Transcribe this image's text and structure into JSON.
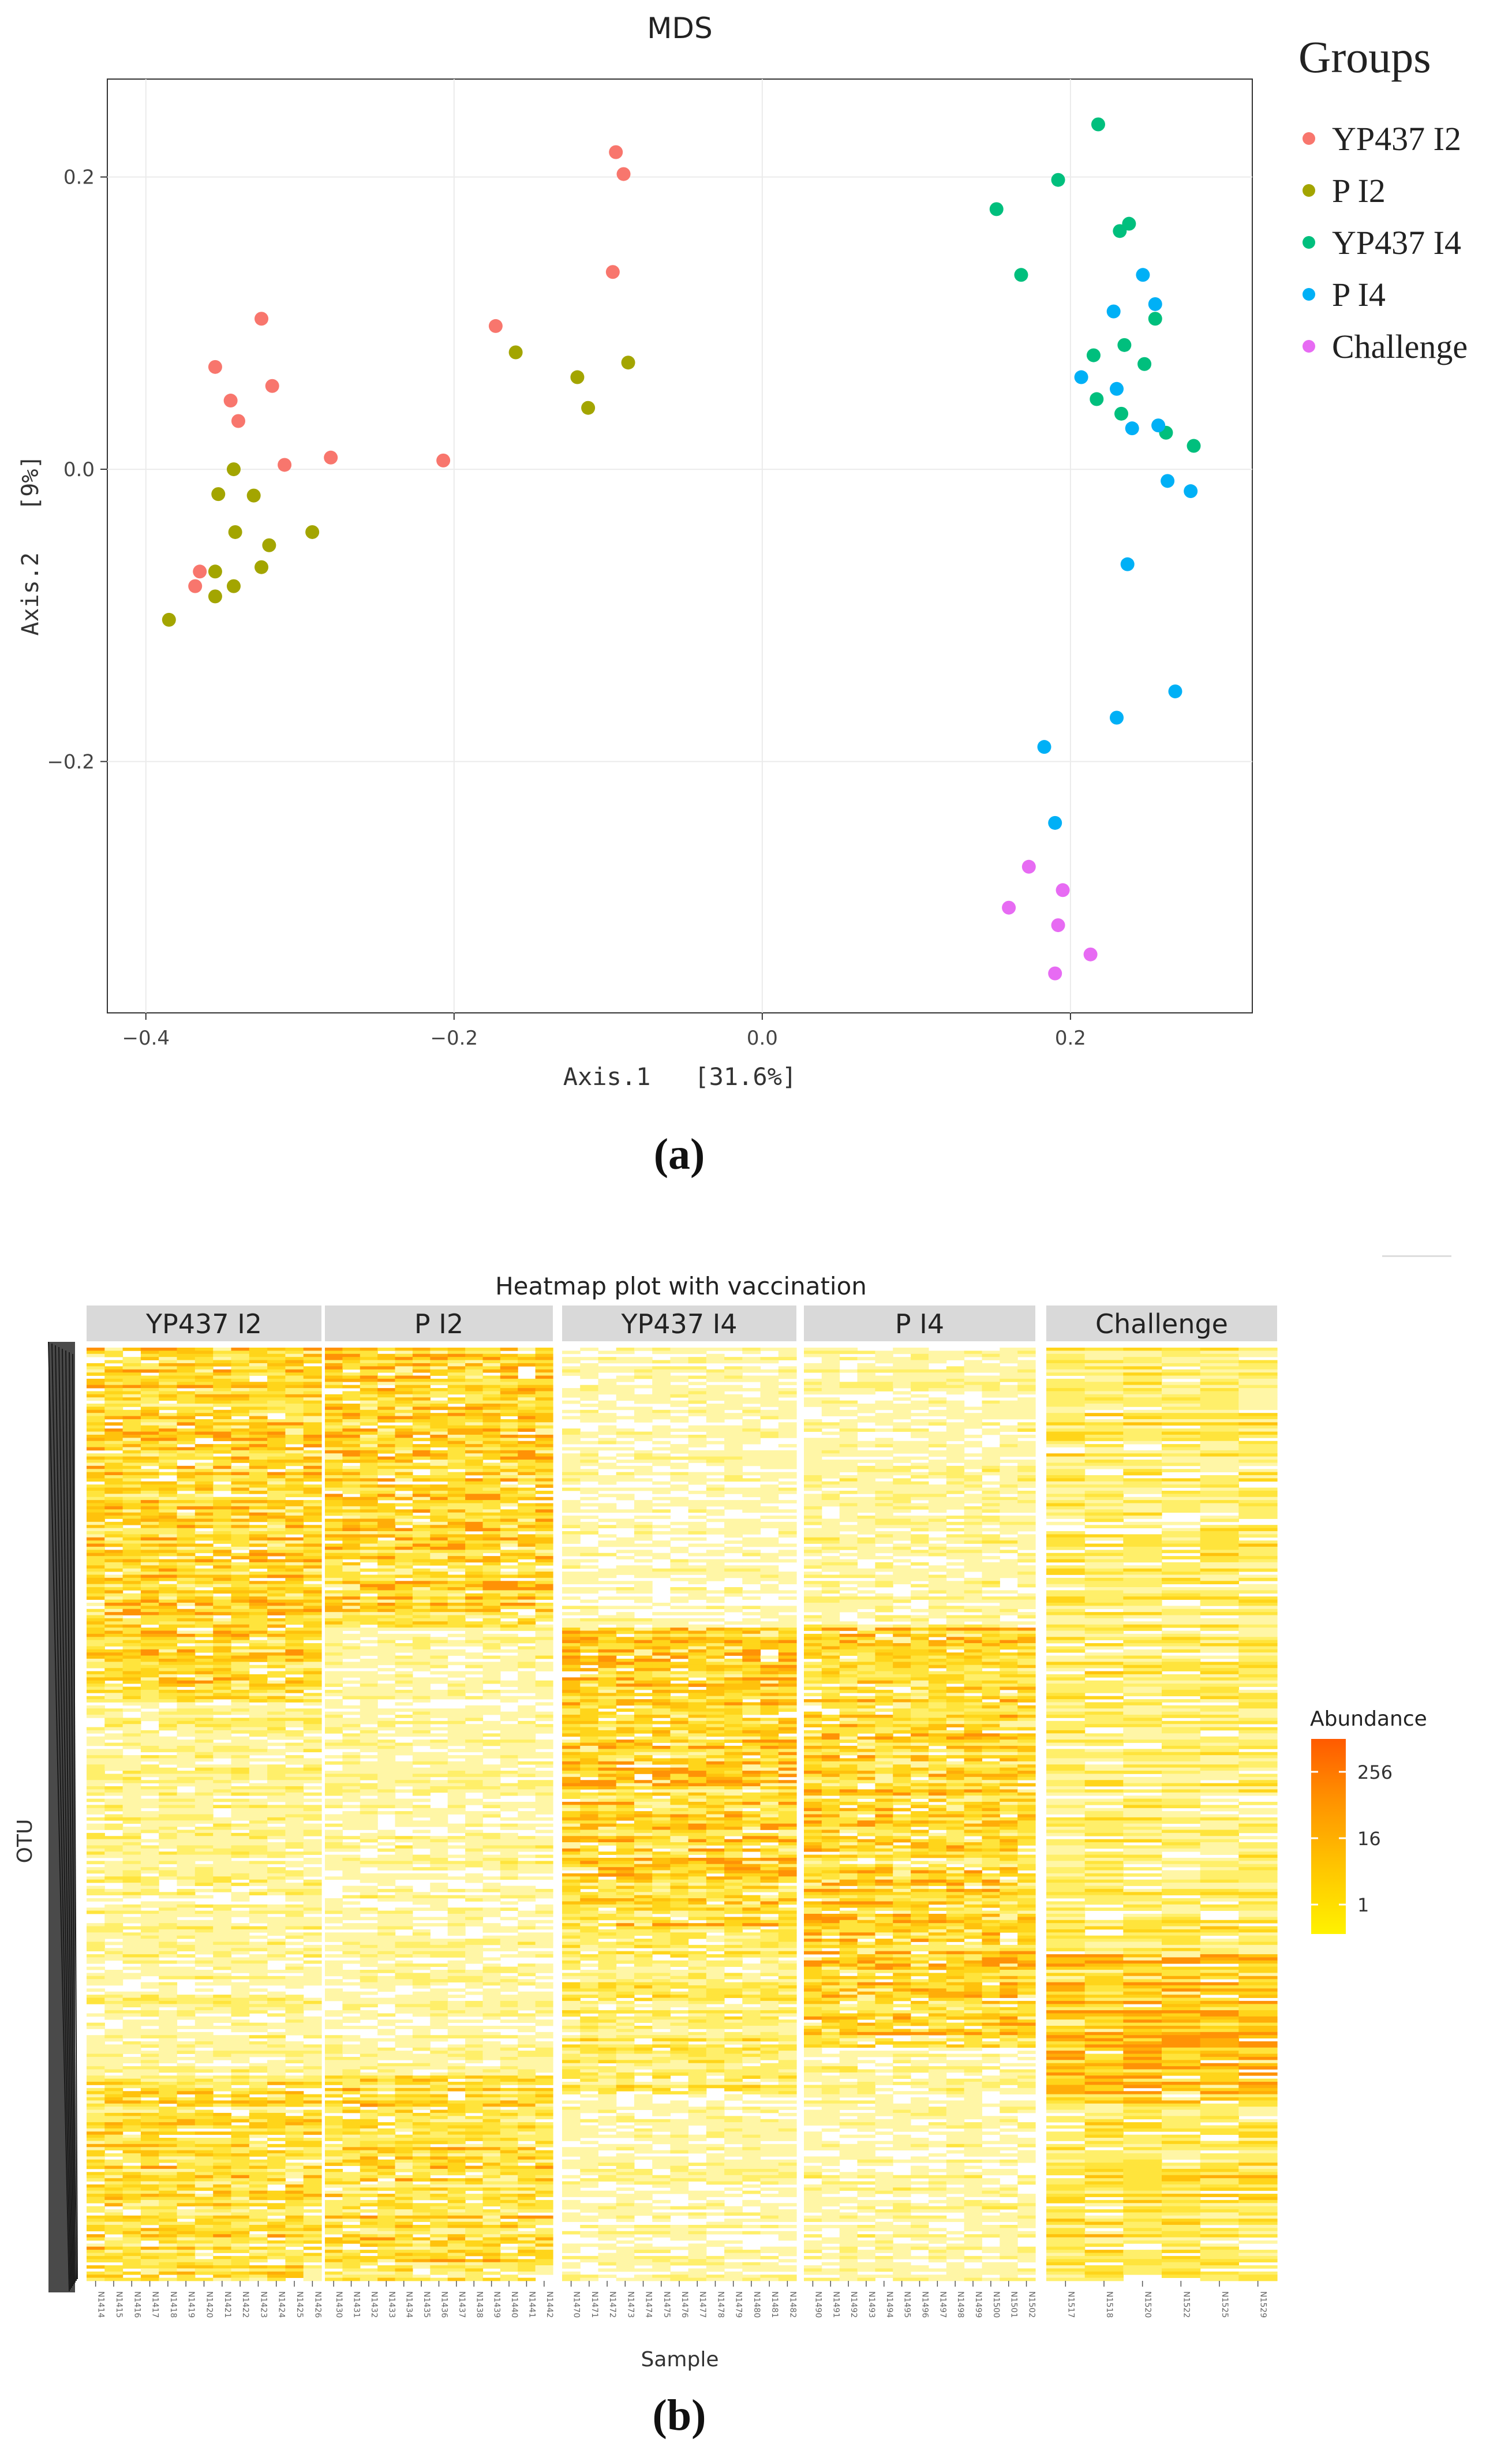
{
  "chart_data": [
    {
      "type": "scatter",
      "title": "MDS",
      "xlabel": "Axis.1   [31.6%]",
      "ylabel": "Axis.2   [9%]",
      "xlim": [
        -0.425,
        0.318
      ],
      "ylim": [
        -0.372,
        0.267
      ],
      "xticks": [
        -0.4,
        -0.2,
        0.0,
        0.2
      ],
      "xtick_labels": [
        "−0.4",
        "−0.2",
        "0.0",
        "0.2"
      ],
      "yticks": [
        0.2,
        0.0,
        -0.2
      ],
      "ytick_labels": [
        "0.2",
        "0.0",
        "−0.2"
      ],
      "grid": true,
      "legend_title": "Groups",
      "legend_position": "right",
      "series": [
        {
          "name": "YP437 I2",
          "color": "#F8766D",
          "points": [
            [
              -0.355,
              0.07
            ],
            [
              -0.345,
              0.047
            ],
            [
              -0.34,
              0.033
            ],
            [
              -0.325,
              0.103
            ],
            [
              -0.318,
              0.057
            ],
            [
              -0.31,
              0.003
            ],
            [
              -0.28,
              0.008
            ],
            [
              -0.365,
              -0.07
            ],
            [
              -0.368,
              -0.08
            ],
            [
              -0.207,
              0.006
            ],
            [
              -0.173,
              0.098
            ],
            [
              -0.097,
              0.135
            ],
            [
              -0.095,
              0.217
            ],
            [
              -0.09,
              0.202
            ]
          ]
        },
        {
          "name": "P I2",
          "color": "#A3A500",
          "points": [
            [
              -0.385,
              -0.103
            ],
            [
              -0.355,
              -0.07
            ],
            [
              -0.355,
              -0.087
            ],
            [
              -0.353,
              -0.017
            ],
            [
              -0.343,
              0.0
            ],
            [
              -0.342,
              -0.043
            ],
            [
              -0.343,
              -0.08
            ],
            [
              -0.33,
              -0.018
            ],
            [
              -0.325,
              -0.067
            ],
            [
              -0.32,
              -0.052
            ],
            [
              -0.292,
              -0.043
            ],
            [
              -0.16,
              0.08
            ],
            [
              -0.12,
              0.063
            ],
            [
              -0.113,
              0.042
            ],
            [
              -0.087,
              0.073
            ]
          ]
        },
        {
          "name": "YP437 I4",
          "color": "#00BF7D",
          "points": [
            [
              0.152,
              0.178
            ],
            [
              0.168,
              0.133
            ],
            [
              0.192,
              0.198
            ],
            [
              0.218,
              0.236
            ],
            [
              0.215,
              0.078
            ],
            [
              0.217,
              0.048
            ],
            [
              0.232,
              0.163
            ],
            [
              0.238,
              0.168
            ],
            [
              0.235,
              0.085
            ],
            [
              0.233,
              0.038
            ],
            [
              0.248,
              0.072
            ],
            [
              0.255,
              0.103
            ],
            [
              0.262,
              0.025
            ],
            [
              0.28,
              0.016
            ]
          ]
        },
        {
          "name": "P I4",
          "color": "#00B0F6",
          "points": [
            [
              0.183,
              -0.19
            ],
            [
              0.19,
              -0.242
            ],
            [
              0.207,
              0.063
            ],
            [
              0.228,
              0.108
            ],
            [
              0.23,
              0.055
            ],
            [
              0.23,
              -0.17
            ],
            [
              0.237,
              -0.065
            ],
            [
              0.24,
              0.028
            ],
            [
              0.247,
              0.133
            ],
            [
              0.255,
              0.113
            ],
            [
              0.257,
              0.03
            ],
            [
              0.263,
              -0.008
            ],
            [
              0.268,
              -0.152
            ],
            [
              0.278,
              -0.015
            ]
          ]
        },
        {
          "name": "Challenge",
          "color": "#E76BF3",
          "points": [
            [
              0.16,
              -0.3
            ],
            [
              0.173,
              -0.272
            ],
            [
              0.19,
              -0.345
            ],
            [
              0.192,
              -0.312
            ],
            [
              0.195,
              -0.288
            ],
            [
              0.213,
              -0.332
            ]
          ]
        }
      ]
    },
    {
      "type": "heatmap",
      "title": "Heatmap plot with vaccination",
      "xlabel": "Sample",
      "ylabel": "OTU",
      "panels": [
        {
          "label": "YP437 I2",
          "samples": [
            "N1414",
            "N1415",
            "N1416",
            "N1417",
            "N1418",
            "N1419",
            "N1420",
            "N1421",
            "N1422",
            "N1423",
            "N1424",
            "N1425",
            "N1426"
          ]
        },
        {
          "label": "P I2",
          "samples": [
            "N1430",
            "N1431",
            "N1432",
            "N1433",
            "N1434",
            "N1435",
            "N1436",
            "N1437",
            "N1438",
            "N1439",
            "N1440",
            "N1441",
            "N1442"
          ]
        },
        {
          "label": "YP437 I4",
          "samples": [
            "N1470",
            "N1471",
            "N1472",
            "N1473",
            "N1474",
            "N1475",
            "N1476",
            "N1477",
            "N1478",
            "N1479",
            "N1480",
            "N1481",
            "N1482"
          ]
        },
        {
          "label": "P I4",
          "samples": [
            "N1490",
            "N1491",
            "N1492",
            "N1493",
            "N1494",
            "N1495",
            "N1496",
            "N1497",
            "N1498",
            "N1499",
            "N1500",
            "N1501",
            "N1502"
          ]
        },
        {
          "label": "Challenge",
          "samples": [
            "N1517",
            "N1518",
            "N1520",
            "N1522",
            "N1525",
            "N1529"
          ]
        }
      ],
      "colorbar": {
        "title": "Abundance",
        "ticks": [
          "256",
          "16",
          "1"
        ],
        "colors": [
          "#FFF200",
          "#FFC400",
          "#FF9000",
          "#FF5A00"
        ]
      }
    }
  ],
  "labels": {
    "panel_a": "(a)",
    "panel_b": "(b)"
  }
}
